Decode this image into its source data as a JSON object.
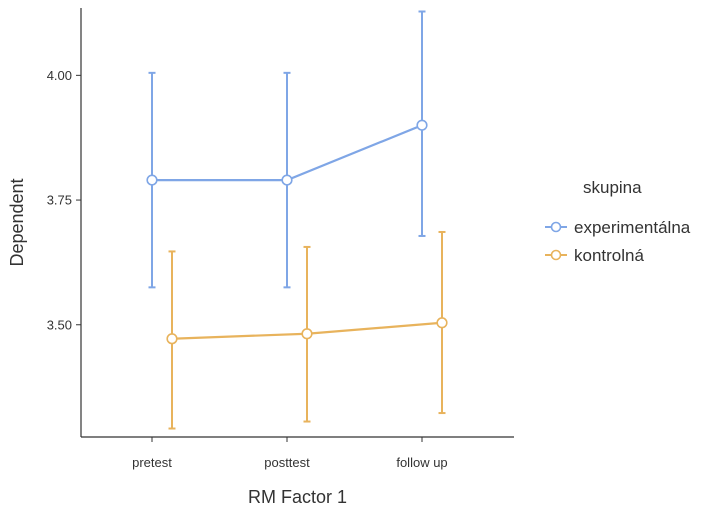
{
  "chart_data": {
    "type": "line",
    "xlabel": "RM Factor 1",
    "ylabel": "Dependent",
    "categories": [
      "pretest",
      "posttest",
      "follow up"
    ],
    "ylim": [
      3.275,
      4.135
    ],
    "yticks": [
      3.5,
      3.75,
      4.0
    ],
    "ytick_labels": [
      "3.50",
      "3.75",
      "4.00"
    ],
    "legend": {
      "title": "skupina",
      "placement": "right"
    },
    "grid": false,
    "error_bars": true,
    "series": [
      {
        "name": "experimentálna",
        "color": "#7fa6e6",
        "values": [
          3.79,
          3.79,
          3.9
        ],
        "lower": [
          3.575,
          3.575,
          3.678
        ],
        "upper": [
          4.005,
          4.005,
          4.128
        ]
      },
      {
        "name": "kontrolná",
        "color": "#e8b35c",
        "values": [
          3.472,
          3.482,
          3.504
        ],
        "lower": [
          3.292,
          3.306,
          3.323
        ],
        "upper": [
          3.647,
          3.656,
          3.686
        ]
      }
    ]
  }
}
